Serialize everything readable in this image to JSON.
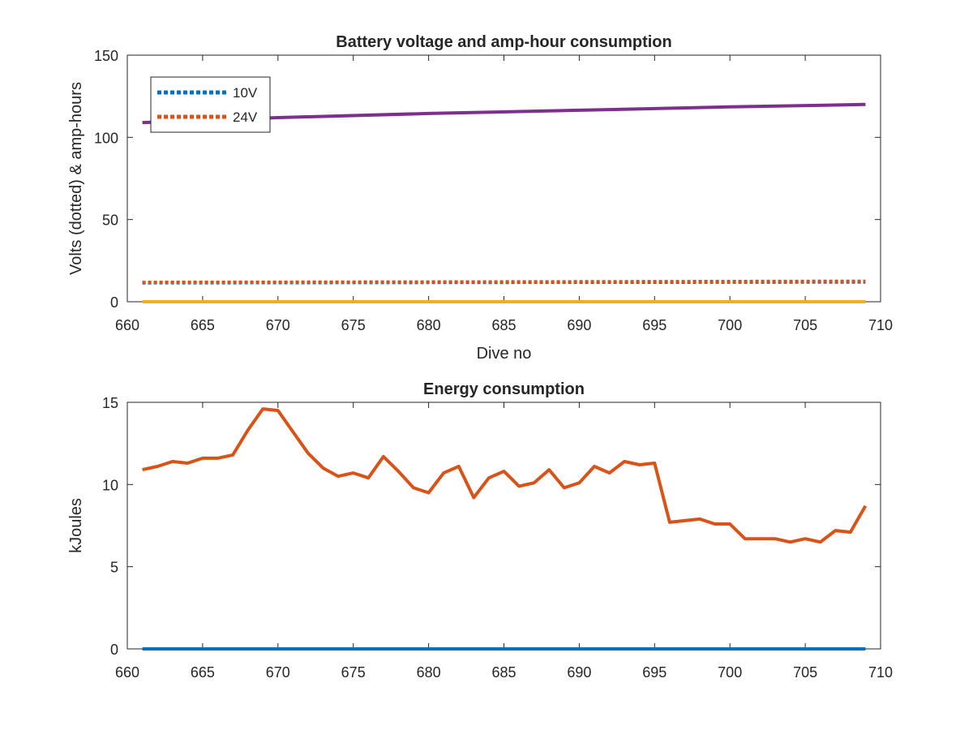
{
  "chart_data": [
    {
      "type": "line",
      "title": "Battery voltage and amp-hour consumption",
      "xlabel": "Dive no",
      "ylabel": "Volts (dotted) & amp-hours",
      "xlim": [
        660,
        710
      ],
      "ylim": [
        0,
        150
      ],
      "xticks": [
        660,
        665,
        670,
        675,
        680,
        685,
        690,
        695,
        700,
        705,
        710
      ],
      "yticks": [
        0,
        50,
        100,
        150
      ],
      "legend_position": "top-left",
      "series": [
        {
          "name": "10V",
          "style": "dotted",
          "color": "#0072BD",
          "x": [
            661,
            709
          ],
          "y": [
            11.5,
            12
          ]
        },
        {
          "name": "24V",
          "style": "dotted",
          "color": "#D95319",
          "x": [
            661,
            675,
            690,
            709
          ],
          "y": [
            11.8,
            12,
            12.2,
            12.5
          ]
        },
        {
          "name": "",
          "style": "solid",
          "color": "#7E2F8E",
          "x": [
            661,
            670,
            680,
            690,
            700,
            709
          ],
          "y": [
            109,
            112,
            114.5,
            116.5,
            118.5,
            120
          ]
        },
        {
          "name": "",
          "style": "solid",
          "color": "#EDB120",
          "x": [
            661,
            709
          ],
          "y": [
            0,
            0
          ]
        }
      ]
    },
    {
      "type": "line",
      "title": "Energy consumption",
      "xlabel": "",
      "ylabel": "kJoules",
      "xlim": [
        660,
        710
      ],
      "ylim": [
        0,
        15
      ],
      "xticks": [
        660,
        665,
        670,
        675,
        680,
        685,
        690,
        695,
        700,
        705,
        710
      ],
      "yticks": [
        0,
        5,
        10,
        15
      ],
      "series": [
        {
          "name": "",
          "style": "solid",
          "color": "#D95319",
          "x": [
            661,
            662,
            663,
            664,
            665,
            666,
            667,
            668,
            669,
            670,
            671,
            672,
            673,
            674,
            675,
            676,
            677,
            678,
            679,
            680,
            681,
            682,
            683,
            684,
            685,
            686,
            687,
            688,
            689,
            690,
            691,
            692,
            693,
            694,
            695,
            696,
            697,
            698,
            699,
            700,
            701,
            702,
            703,
            704,
            705,
            706,
            707,
            708,
            709
          ],
          "y": [
            10.9,
            11.1,
            11.4,
            11.3,
            11.6,
            11.6,
            11.8,
            13.3,
            14.6,
            14.5,
            13.2,
            11.9,
            11.0,
            10.5,
            10.7,
            10.4,
            11.7,
            10.8,
            9.8,
            9.5,
            10.7,
            11.1,
            9.2,
            10.4,
            10.8,
            9.9,
            10.1,
            10.9,
            9.8,
            10.1,
            11.1,
            10.7,
            11.4,
            11.2,
            11.3,
            7.7,
            7.8,
            7.9,
            7.6,
            7.6,
            6.7,
            6.7,
            6.7,
            6.5,
            6.7,
            6.5,
            7.2,
            7.1,
            8.7
          ]
        },
        {
          "name": "",
          "style": "solid",
          "color": "#0072BD",
          "x": [
            661,
            709
          ],
          "y": [
            0,
            0
          ]
        }
      ]
    }
  ]
}
